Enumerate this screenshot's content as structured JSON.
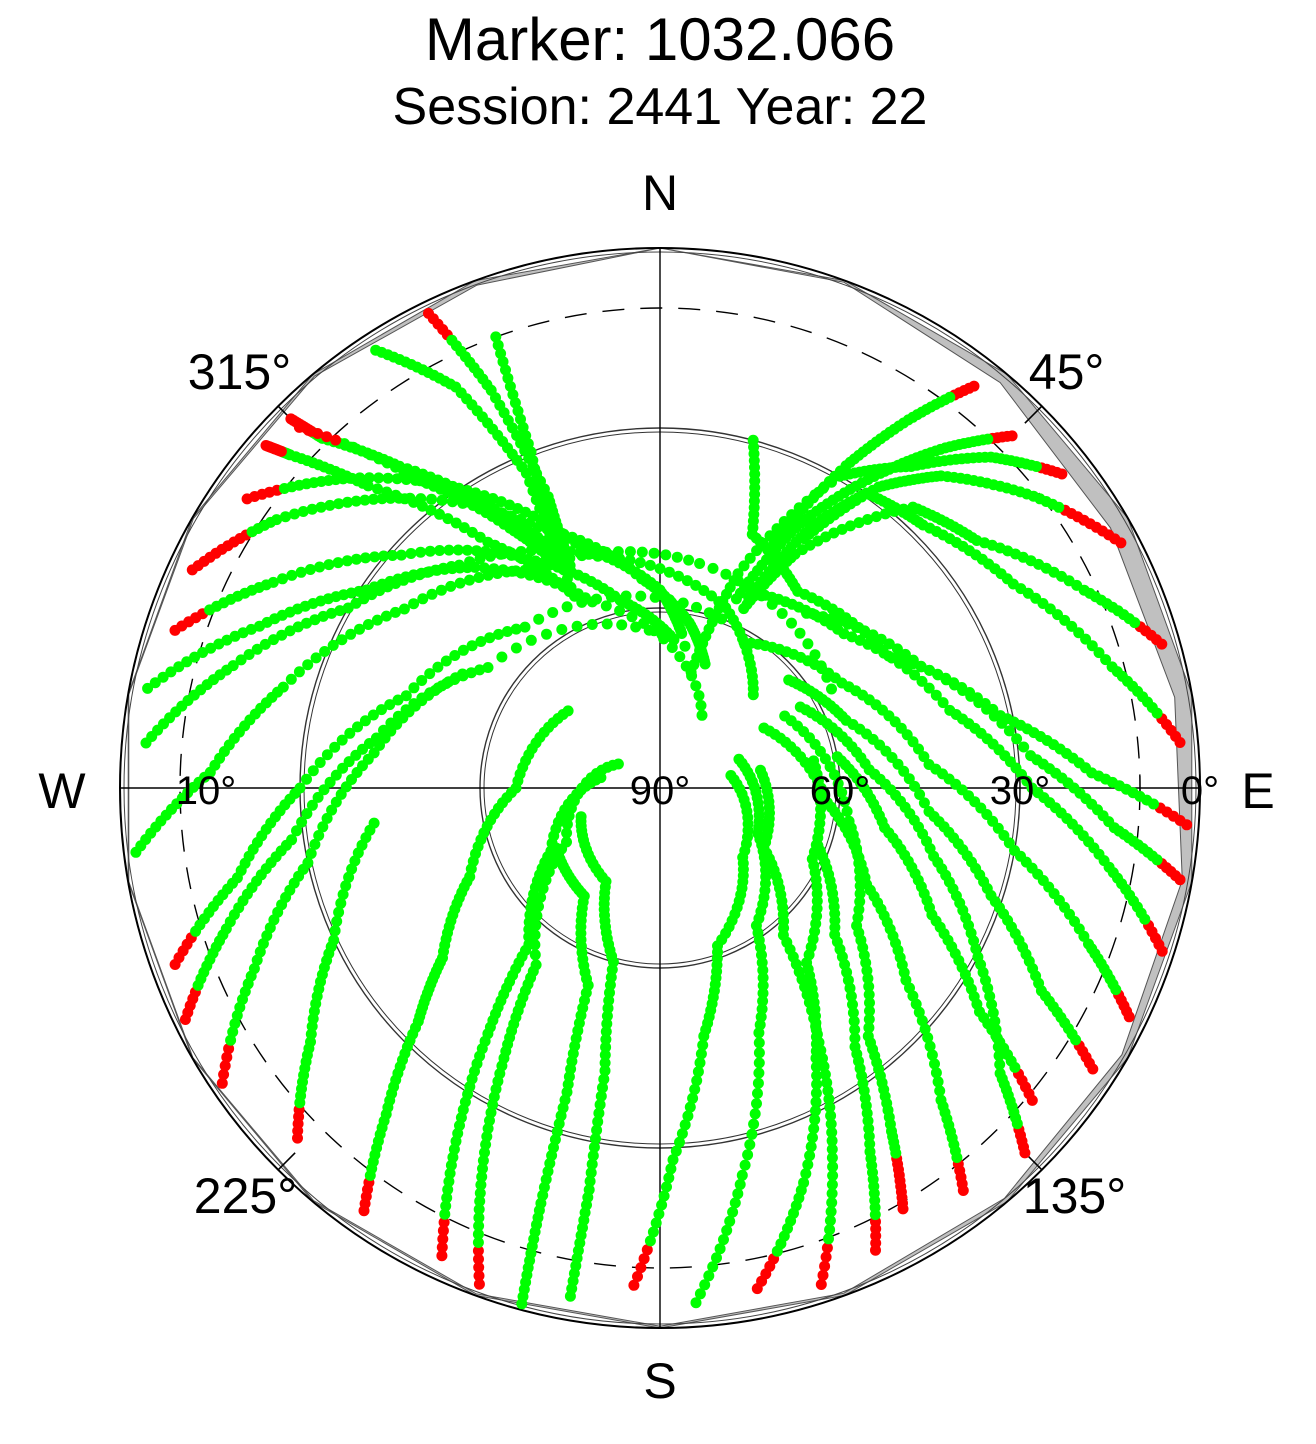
{
  "chart_data": {
    "type": "scatter",
    "projection": "polar-skyplot",
    "title": "Marker: 1032.066",
    "subtitle": "Session: 2441 Year: 22",
    "cardinals": {
      "north": "N",
      "south": "S",
      "east": "E",
      "west": "W"
    },
    "azimuth_labels": [
      {
        "az": 315,
        "text": "315°"
      },
      {
        "az": 45,
        "text": "45°"
      },
      {
        "az": 135,
        "text": "135°"
      },
      {
        "az": 225,
        "text": "225°"
      }
    ],
    "elevation_labels": [
      {
        "el": 90,
        "text": "90°"
      },
      {
        "el": 60,
        "text": "60°"
      },
      {
        "el": 30,
        "text": "30°"
      },
      {
        "el": 0,
        "text": "0°"
      },
      {
        "el": 10,
        "text": "10°"
      }
    ],
    "elevation_circles": [
      30,
      60
    ],
    "cutoff_elevation": 10,
    "elevation_range": [
      0,
      90
    ],
    "colors": {
      "tracked": "#00ff00",
      "low_quality": "#ff0000",
      "mask_fill": "#c0c0c0",
      "axis": "#000000"
    },
    "mask": [
      {
        "az": 0,
        "el": 0.0
      },
      {
        "az": 20,
        "el": 0.3
      },
      {
        "az": 40,
        "el": 1.8
      },
      {
        "az": 60,
        "el": 3.3
      },
      {
        "az": 80,
        "el": 2.9
      },
      {
        "az": 100,
        "el": 1.6
      },
      {
        "az": 120,
        "el": 1.1
      },
      {
        "az": 140,
        "el": 0.7
      },
      {
        "az": 160,
        "el": 0.4
      },
      {
        "az": 180,
        "el": 0.3
      },
      {
        "az": 200,
        "el": 0.3
      },
      {
        "az": 220,
        "el": 0.2
      },
      {
        "az": 240,
        "el": 0.1
      },
      {
        "az": 260,
        "el": 0.1
      },
      {
        "az": 280,
        "el": 0.1
      },
      {
        "az": 300,
        "el": 0.2
      },
      {
        "az": 320,
        "el": 0.4
      },
      {
        "az": 340,
        "el": 0.8
      },
      {
        "az": 360,
        "el": 0.0
      }
    ],
    "series": [
      {
        "points": [
          [
            327,
            3
          ],
          [
            333,
            15
          ],
          [
            337,
            33
          ],
          [
            336,
            55
          ],
          [
            325,
            40
          ],
          [
            316,
            20
          ],
          [
            312,
            7
          ],
          [
            311,
            3
          ]
        ],
        "red_start": 0,
        "red_end": 2
      },
      {
        "points": [
          [
            334,
            2
          ],
          [
            337,
            18
          ],
          [
            339,
            38
          ],
          [
            338,
            50
          ],
          [
            330,
            37
          ],
          [
            321,
            21
          ],
          [
            316,
            9
          ],
          [
            315,
            3
          ]
        ],
        "red_start": 1,
        "red_end": 2
      },
      {
        "points": [
          [
            340,
            10
          ],
          [
            339,
            30
          ],
          [
            336,
            50
          ],
          [
            330,
            40
          ],
          [
            322,
            25
          ],
          [
            315,
            5
          ]
        ],
        "red_start": 0,
        "red_end": 1
      },
      {
        "points": [
          [
            295,
            4
          ],
          [
            305,
            12
          ],
          [
            318,
            25
          ],
          [
            335,
            42
          ],
          [
            355,
            55
          ],
          [
            10,
            62
          ],
          [
            20,
            68
          ]
        ],
        "red_start": 2,
        "red_end": 0
      },
      {
        "points": [
          [
            305,
            6
          ],
          [
            315,
            17
          ],
          [
            328,
            32
          ],
          [
            342,
            48
          ],
          [
            0,
            57
          ],
          [
            8,
            64
          ]
        ],
        "red_start": 1,
        "red_end": 0
      },
      {
        "points": [
          [
            288,
            5
          ],
          [
            298,
            17
          ],
          [
            312,
            32
          ],
          [
            330,
            46
          ],
          [
            348,
            58
          ],
          [
            5,
            65
          ]
        ],
        "red_start": 1,
        "red_end": 0
      },
      {
        "points": [
          [
            281,
            3
          ],
          [
            292,
            18
          ],
          [
            304,
            31
          ],
          [
            320,
            42
          ],
          [
            340,
            57
          ],
          [
            30,
            76
          ]
        ],
        "red_start": 0,
        "red_end": 0
      },
      {
        "points": [
          [
            275,
            4
          ],
          [
            286,
            16
          ],
          [
            300,
            30
          ],
          [
            318,
            40
          ],
          [
            345,
            50
          ],
          [
            20,
            58
          ],
          [
            45,
            68
          ]
        ],
        "red_start": 0,
        "red_end": 0
      },
      {
        "points": [
          [
            263,
            2
          ],
          [
            272,
            15
          ],
          [
            285,
            25
          ],
          [
            305,
            38
          ],
          [
            330,
            48
          ],
          [
            10,
            52
          ],
          [
            60,
            57
          ]
        ],
        "red_start": 0,
        "red_end": 0
      },
      {
        "points": [
          [
            250,
            4
          ],
          [
            258,
            18
          ],
          [
            270,
            30
          ],
          [
            290,
            45
          ],
          [
            320,
            55
          ],
          [
            20,
            60
          ]
        ],
        "red_start": 1,
        "red_end": 0
      },
      {
        "points": [
          [
            244,
            2
          ],
          [
            252,
            14
          ],
          [
            262,
            28
          ],
          [
            280,
            42
          ],
          [
            305,
            55
          ],
          [
            10,
            66
          ]
        ],
        "red_start": 1,
        "red_end": 0
      },
      {
        "points": [
          [
            236,
            2
          ],
          [
            246,
            16
          ],
          [
            258,
            30
          ],
          [
            277,
            42
          ],
          [
            300,
            52
          ]
        ],
        "red_start": 1,
        "red_end": 0
      },
      {
        "points": [
          [
            226,
            6
          ],
          [
            234,
            18
          ],
          [
            245,
            30
          ],
          [
            263,
            42
          ]
        ],
        "red_start": 1,
        "red_end": 0
      },
      {
        "points": [
          [
            215,
            4
          ],
          [
            220,
            19
          ],
          [
            226,
            34
          ],
          [
            232,
            44
          ],
          [
            245,
            55
          ],
          [
            270,
            66
          ],
          [
            310,
            70
          ]
        ],
        "red_start": 1,
        "red_end": 0
      },
      {
        "points": [
          [
            205,
            4
          ],
          [
            210,
            22
          ],
          [
            215,
            40
          ],
          [
            220,
            56
          ],
          [
            240,
            69
          ],
          [
            280,
            80
          ]
        ],
        "red_start": 1,
        "red_end": 0
      },
      {
        "points": [
          [
            200,
            2
          ],
          [
            205,
            20
          ],
          [
            210,
            38
          ],
          [
            215,
            54
          ],
          [
            240,
            72
          ],
          [
            300,
            82
          ]
        ],
        "red_start": 1,
        "red_end": 0
      },
      {
        "points": [
          [
            195,
            1
          ],
          [
            196,
            18
          ],
          [
            197,
            37
          ],
          [
            200,
            55
          ],
          [
            215,
            68
          ],
          [
            240,
            70
          ]
        ],
        "red_start": 0,
        "red_end": 0
      },
      {
        "points": [
          [
            190,
            4
          ],
          [
            190,
            22
          ],
          [
            191,
            42
          ],
          [
            195,
            60
          ],
          [
            210,
            72
          ],
          [
            250,
            76
          ]
        ],
        "red_start": 0,
        "red_end": 0
      },
      {
        "points": [
          [
            183,
            7
          ],
          [
            178,
            28
          ],
          [
            170,
            48
          ],
          [
            160,
            62
          ],
          [
            130,
            72
          ],
          [
            80,
            78
          ]
        ],
        "red_start": 1,
        "red_end": 0
      },
      {
        "points": [
          [
            176,
            4
          ],
          [
            168,
            24
          ],
          [
            158,
            46
          ],
          [
            145,
            62
          ],
          [
            115,
            72
          ],
          [
            70,
            76
          ]
        ],
        "red_start": 0,
        "red_end": 0
      },
      {
        "points": [
          [
            169,
            5
          ],
          [
            160,
            20
          ],
          [
            150,
            38
          ],
          [
            140,
            52
          ],
          [
            115,
            62
          ],
          [
            80,
            64
          ]
        ],
        "red_start": 1,
        "red_end": 0
      },
      {
        "points": [
          [
            162,
            3
          ],
          [
            155,
            22
          ],
          [
            148,
            40
          ],
          [
            140,
            58
          ],
          [
            120,
            70
          ],
          [
            80,
            73
          ]
        ],
        "red_start": 1,
        "red_end": 0
      },
      {
        "points": [
          [
            155,
            5
          ],
          [
            150,
            20
          ],
          [
            143,
            36
          ],
          [
            130,
            52
          ],
          [
            110,
            62
          ]
        ],
        "red_start": 1,
        "red_end": 0
      },
      {
        "points": [
          [
            150,
            9
          ],
          [
            146,
            21
          ],
          [
            140,
            36
          ],
          [
            125,
            50
          ],
          [
            100,
            58
          ],
          [
            60,
            66
          ]
        ],
        "red_start": 2,
        "red_end": 0
      },
      {
        "points": [
          [
            143,
            6
          ],
          [
            138,
            20
          ],
          [
            128,
            38
          ],
          [
            115,
            52
          ],
          [
            95,
            62
          ],
          [
            60,
            70
          ]
        ],
        "red_start": 1,
        "red_end": 0
      },
      {
        "points": [
          [
            135,
            4
          ],
          [
            130,
            16
          ],
          [
            118,
            30
          ],
          [
            104,
            43
          ],
          [
            85,
            55
          ],
          [
            60,
            63
          ]
        ],
        "red_start": 1,
        "red_end": 0
      },
      {
        "points": [
          [
            130,
            9
          ],
          [
            125,
            25
          ],
          [
            115,
            40
          ],
          [
            100,
            52
          ],
          [
            80,
            60
          ]
        ],
        "red_start": 1,
        "red_end": 0
      },
      {
        "points": [
          [
            123,
            4
          ],
          [
            118,
            18
          ],
          [
            108,
            32
          ],
          [
            95,
            45
          ],
          [
            70,
            57
          ],
          [
            50,
            62
          ]
        ],
        "red_start": 1,
        "red_end": 0
      },
      {
        "points": [
          [
            116,
            3
          ],
          [
            110,
            14
          ],
          [
            100,
            30
          ],
          [
            85,
            45
          ],
          [
            60,
            55
          ],
          [
            30,
            62
          ]
        ],
        "red_start": 1,
        "red_end": 0
      },
      {
        "points": [
          [
            108,
            2
          ],
          [
            100,
            14
          ],
          [
            90,
            28
          ],
          [
            75,
            40
          ],
          [
            50,
            50
          ],
          [
            25,
            54
          ]
        ],
        "red_start": 1,
        "red_end": 0
      },
      {
        "points": [
          [
            100,
            2
          ],
          [
            95,
            14
          ],
          [
            85,
            28
          ],
          [
            65,
            42
          ],
          [
            40,
            52
          ]
        ],
        "red_start": 1,
        "red_end": 0
      },
      {
        "points": [
          [
            94,
            2
          ],
          [
            88,
            18
          ],
          [
            78,
            32
          ],
          [
            60,
            46
          ],
          [
            35,
            50
          ],
          [
            20,
            45
          ],
          [
            15,
            30
          ]
        ],
        "red_start": 1,
        "red_end": 0
      },
      {
        "points": [
          [
            85,
            3
          ],
          [
            75,
            12
          ],
          [
            60,
            22
          ],
          [
            45,
            28
          ],
          [
            35,
            30
          ],
          [
            30,
            40
          ],
          [
            25,
            55
          ]
        ],
        "red_start": 1,
        "red_end": 0
      },
      {
        "points": [
          [
            74,
            3
          ],
          [
            65,
            12
          ],
          [
            52,
            23
          ],
          [
            42,
            27
          ],
          [
            30,
            45
          ],
          [
            25,
            57
          ]
        ],
        "red_start": 1,
        "red_end": 0
      },
      {
        "points": [
          [
            62,
            3
          ],
          [
            52,
            11
          ],
          [
            42,
            20
          ],
          [
            36,
            28
          ],
          [
            30,
            42
          ]
        ],
        "red_start": 2,
        "red_end": 0
      },
      {
        "points": [
          [
            52,
            5
          ],
          [
            45,
            12
          ],
          [
            38,
            22
          ],
          [
            30,
            30
          ],
          [
            20,
            52
          ],
          [
            15,
            70
          ]
        ],
        "red_start": 1,
        "red_end": 0
      },
      {
        "points": [
          [
            45,
            7
          ],
          [
            40,
            16
          ],
          [
            35,
            26
          ],
          [
            28,
            40
          ],
          [
            22,
            56
          ]
        ],
        "red_start": 1,
        "red_end": 0
      },
      {
        "points": [
          [
            38,
            5
          ],
          [
            34,
            16
          ],
          [
            30,
            28
          ],
          [
            25,
            45
          ]
        ],
        "red_start": 1,
        "red_end": 0
      }
    ]
  }
}
